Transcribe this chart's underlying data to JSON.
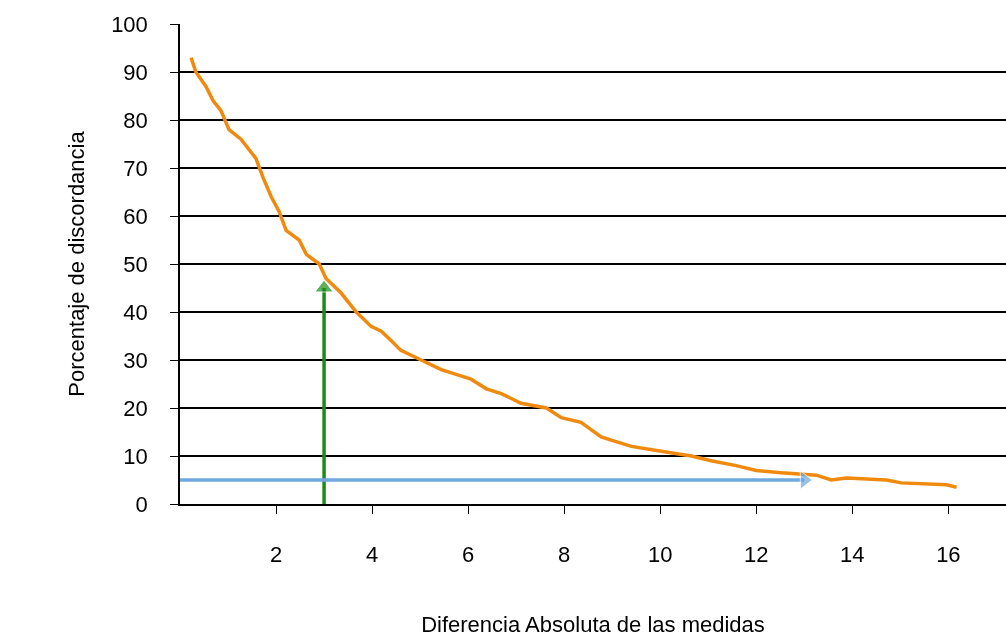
{
  "chart_data": {
    "type": "line",
    "xlabel": "Diferencia Absoluta de las medidas",
    "ylabel": "Porcentaje de discordancia",
    "xlim": [
      0,
      17.2
    ],
    "xticks": [
      2,
      4,
      6,
      8,
      10,
      12,
      14,
      16
    ],
    "ylim": [
      0,
      100
    ],
    "yticks": [
      0,
      10,
      20,
      30,
      40,
      50,
      60,
      70,
      80,
      90,
      100
    ],
    "grid": "y",
    "legend": false,
    "marker": "none",
    "line_style": "solid",
    "series": [
      {
        "color": "#f08a0f",
        "x": [
          0.23,
          0.33,
          0.54,
          0.69,
          0.85,
          1.02,
          1.27,
          1.58,
          1.73,
          1.9,
          2.06,
          2.21,
          2.48,
          2.63,
          2.9,
          3.04,
          3.35,
          3.67,
          3.98,
          4.19,
          4.4,
          4.6,
          5.02,
          5.44,
          5.75,
          6.06,
          6.38,
          6.69,
          7.1,
          7.63,
          7.94,
          8.35,
          8.77,
          9.08,
          9.4,
          10.02,
          10.65,
          11.06,
          11.58,
          12,
          12.52,
          13.25,
          13.56,
          13.88,
          14.71,
          15.02,
          15.96,
          16.17
        ],
        "values": [
          93,
          90,
          87,
          84,
          82,
          78,
          76,
          72,
          68,
          64,
          61,
          57,
          55,
          52,
          50,
          47,
          44,
          40,
          37,
          36,
          34,
          32,
          30,
          28,
          27,
          26,
          24,
          23,
          21,
          20,
          18,
          17,
          14,
          13,
          12,
          11,
          10,
          9,
          8,
          7,
          6.5,
          6,
          5,
          5.4,
          5,
          4.4,
          4,
          3.5
        ]
      },
      {
        "type": "line",
        "color": "#1a8c1a",
        "marker": "triangle",
        "x": [
          3,
          3
        ],
        "values": [
          0,
          45
        ]
      },
      {
        "type": "line",
        "color": "#6fa8dc",
        "marker": "triangle",
        "x": [
          0,
          13
        ],
        "values": [
          5,
          5
        ]
      }
    ]
  }
}
